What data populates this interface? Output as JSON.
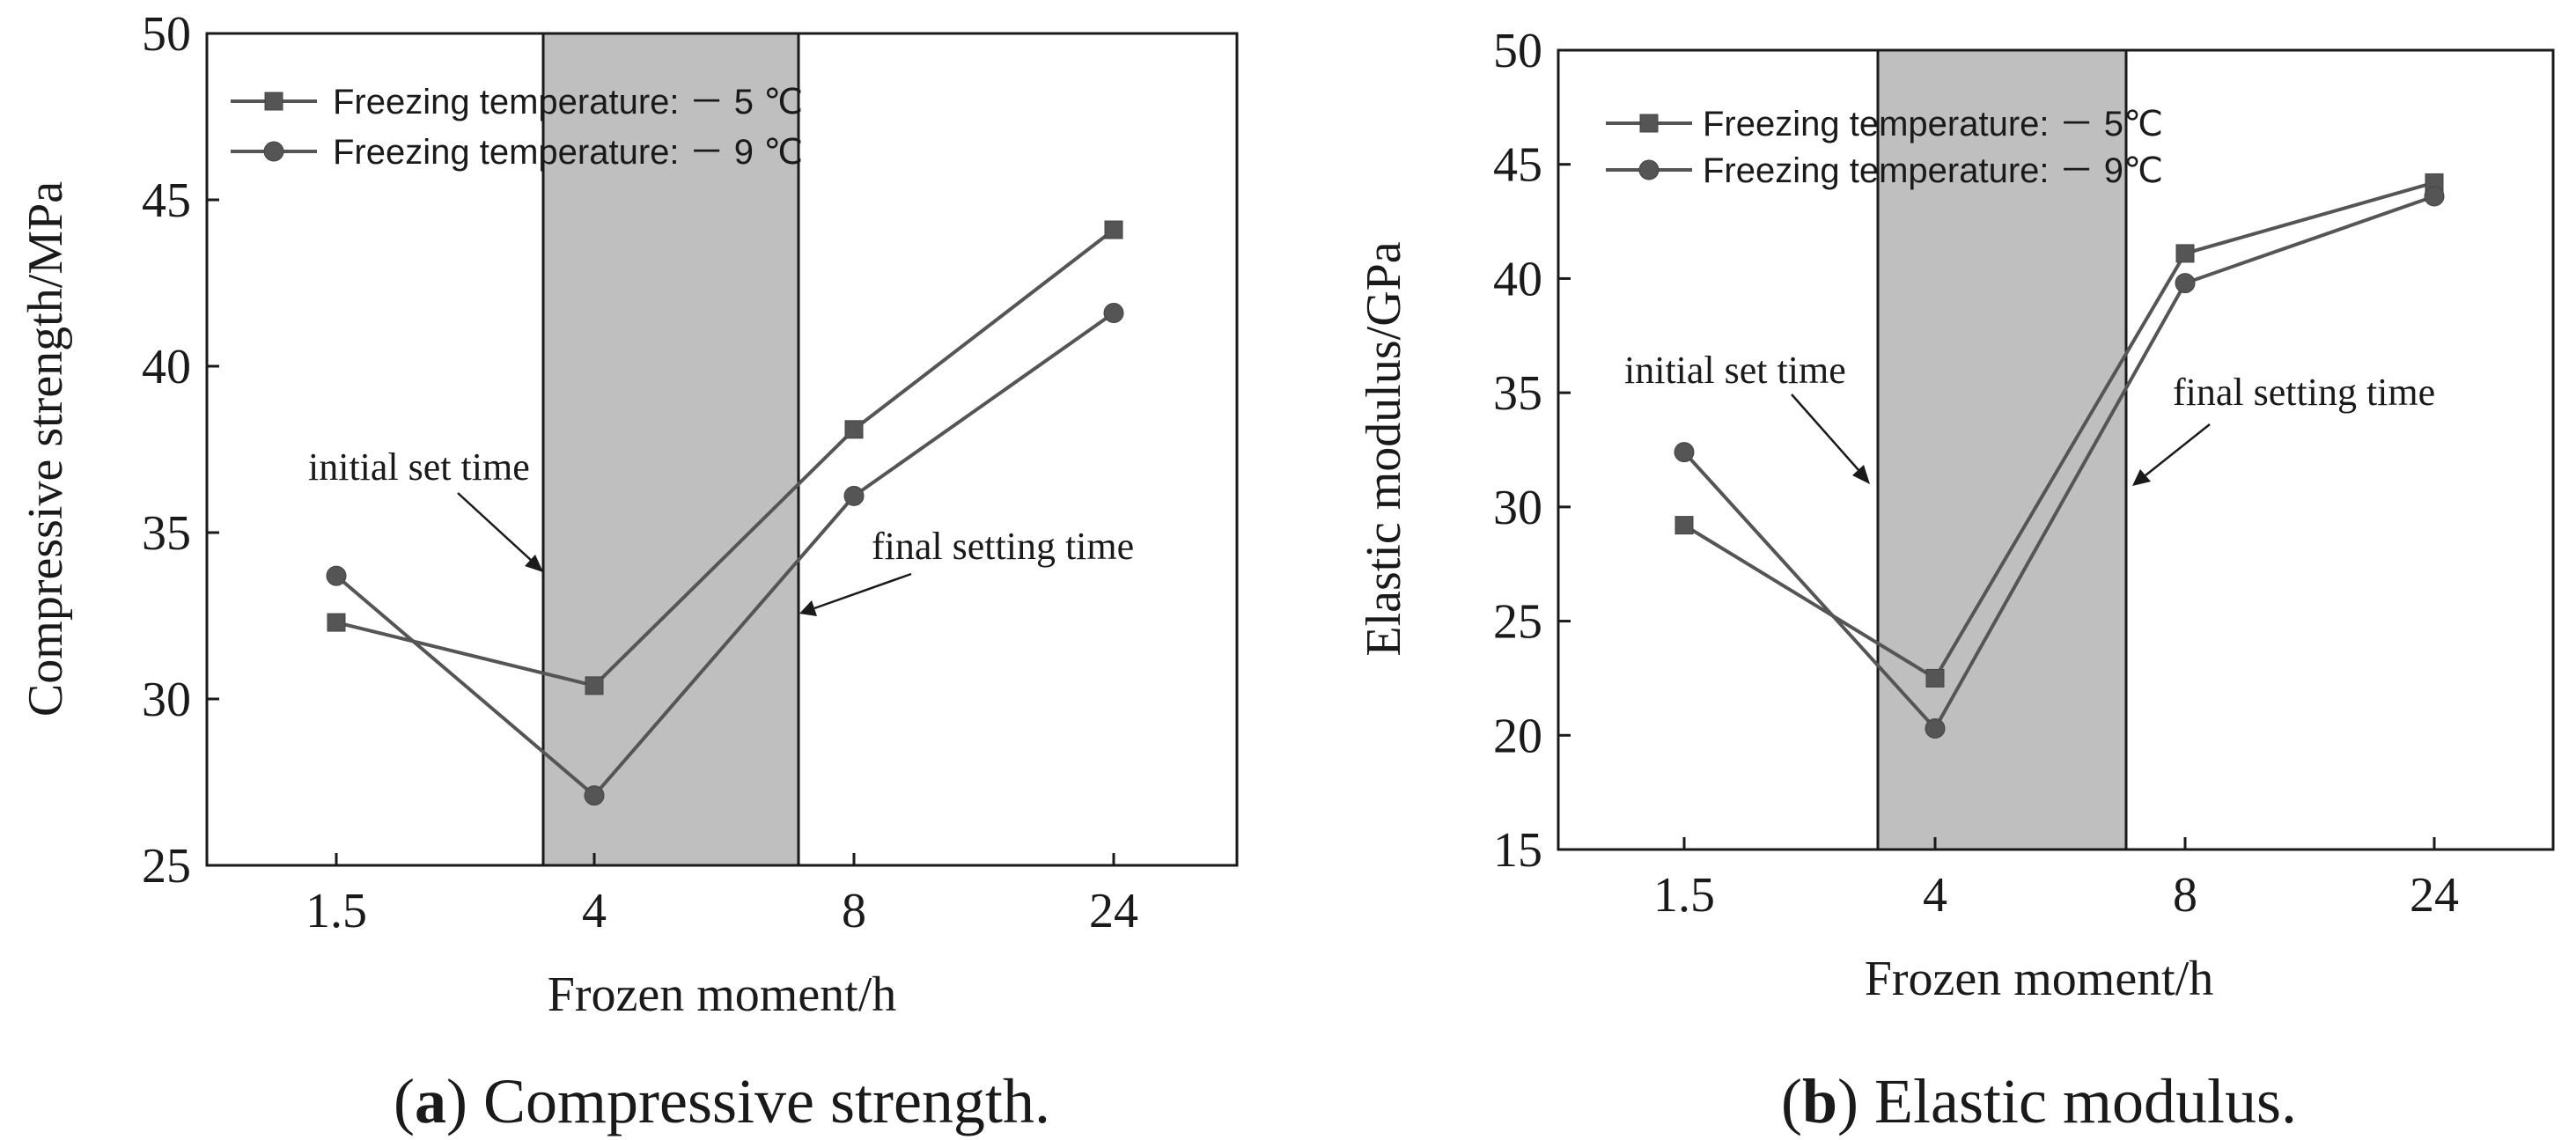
{
  "chart_data": [
    {
      "type": "line",
      "categories": [
        "1.5",
        "4",
        "8",
        "24"
      ],
      "xlabel": "Frozen moment/h",
      "ylabel": "Compressive strength/MPa",
      "ylim": [
        25,
        50
      ],
      "yticks": [
        25,
        30,
        35,
        40,
        45,
        50
      ],
      "grid": false,
      "legend_position": "top-left",
      "series": [
        {
          "name": "Freezing temperature: － 5 ℃",
          "marker": "square",
          "values": [
            32.3,
            30.4,
            38.1,
            44.1
          ]
        },
        {
          "name": "Freezing temperature: － 9 ℃",
          "marker": "circle",
          "values": [
            33.7,
            27.1,
            36.1,
            41.6
          ]
        }
      ],
      "annotations": [
        {
          "text": "initial set time"
        },
        {
          "text": "final setting time"
        }
      ],
      "caption": {
        "letter": "a",
        "text": " Compressive strength."
      }
    },
    {
      "type": "line",
      "categories": [
        "1.5",
        "4",
        "8",
        "24"
      ],
      "xlabel": "Frozen moment/h",
      "ylabel": "Elastic modulus/GPa",
      "ylim": [
        15,
        50
      ],
      "yticks": [
        15,
        20,
        25,
        30,
        35,
        40,
        45,
        50
      ],
      "grid": false,
      "legend_position": "top-left",
      "series": [
        {
          "name": "Freezing temperature: － 5℃",
          "marker": "square",
          "values": [
            29.2,
            22.5,
            41.1,
            44.2
          ]
        },
        {
          "name": "Freezing temperature: － 9℃",
          "marker": "circle",
          "values": [
            32.4,
            20.3,
            39.8,
            43.6
          ]
        }
      ],
      "annotations": [
        {
          "text": "initial set time"
        },
        {
          "text": "final setting time"
        }
      ],
      "caption": {
        "letter": "b",
        "text": " Elastic modulus."
      }
    }
  ]
}
